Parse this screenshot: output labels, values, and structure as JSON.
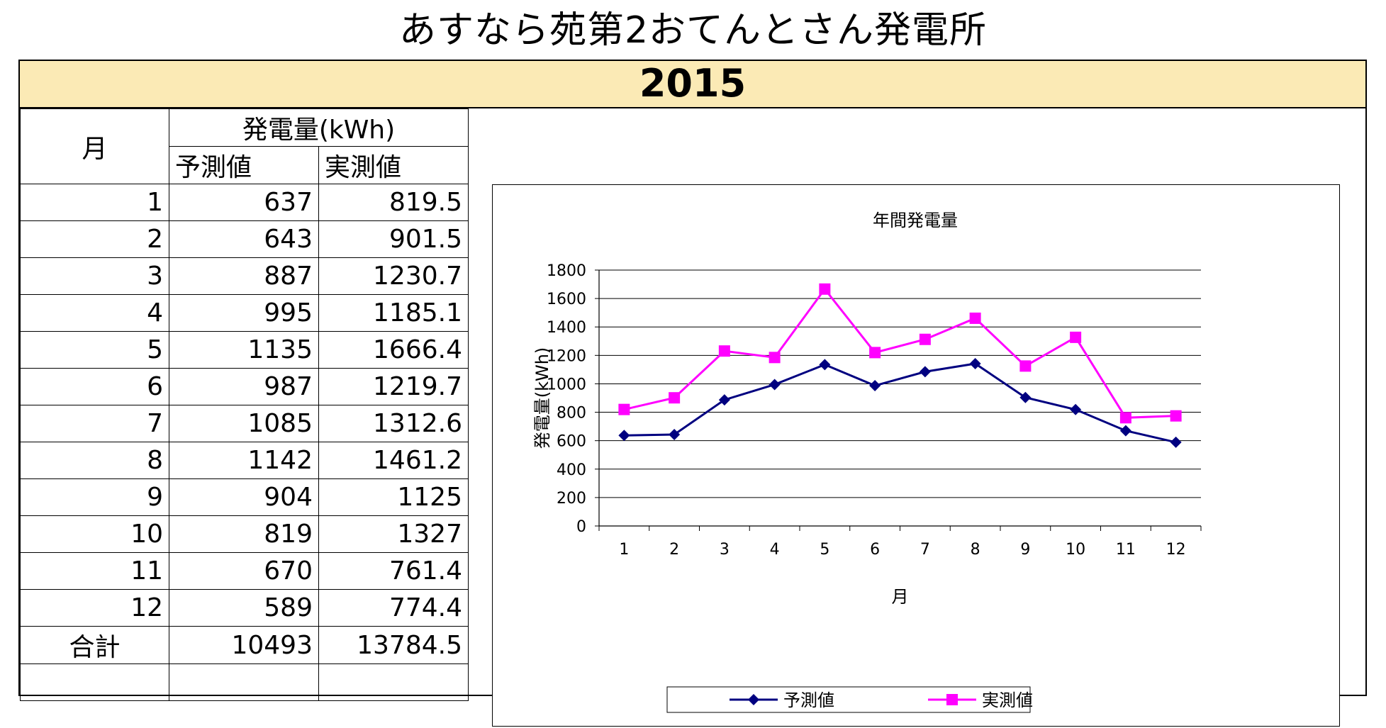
{
  "page": {
    "title": "あすなら苑第2おてんとさん発電所",
    "year": "2015"
  },
  "table": {
    "month_header": "月",
    "group_header": "発電量(kWh)",
    "col_forecast": "予測値",
    "col_actual": "実測値",
    "rows": [
      {
        "month": "1",
        "forecast": "637",
        "actual": "819.5"
      },
      {
        "month": "2",
        "forecast": "643",
        "actual": "901.5"
      },
      {
        "month": "3",
        "forecast": "887",
        "actual": "1230.7"
      },
      {
        "month": "4",
        "forecast": "995",
        "actual": "1185.1"
      },
      {
        "month": "5",
        "forecast": "1135",
        "actual": "1666.4"
      },
      {
        "month": "6",
        "forecast": "987",
        "actual": "1219.7"
      },
      {
        "month": "7",
        "forecast": "1085",
        "actual": "1312.6"
      },
      {
        "month": "8",
        "forecast": "1142",
        "actual": "1461.2"
      },
      {
        "month": "9",
        "forecast": "904",
        "actual": "1125"
      },
      {
        "month": "10",
        "forecast": "819",
        "actual": "1327"
      },
      {
        "month": "11",
        "forecast": "670",
        "actual": "761.4"
      },
      {
        "month": "12",
        "forecast": "589",
        "actual": "774.4"
      }
    ],
    "total_label": "合計",
    "total_forecast": "10493",
    "total_actual": "13784.5"
  },
  "chart_data": {
    "type": "line",
    "title": "年間発電量",
    "xlabel": "月",
    "ylabel": "発電量(kWh)",
    "categories": [
      "1",
      "2",
      "3",
      "4",
      "5",
      "6",
      "7",
      "8",
      "9",
      "10",
      "11",
      "12"
    ],
    "ylim": [
      0,
      1800
    ],
    "yticks": [
      0,
      200,
      400,
      600,
      800,
      1000,
      1200,
      1400,
      1600,
      1800
    ],
    "grid": true,
    "legend": "bottom",
    "series": [
      {
        "name": "予測値",
        "color": "#000080",
        "marker": "diamond",
        "values": [
          637,
          643,
          887,
          995,
          1135,
          987,
          1085,
          1142,
          904,
          819,
          670,
          589
        ]
      },
      {
        "name": "実測値",
        "color": "#ff00ff",
        "marker": "square",
        "values": [
          819.5,
          901.5,
          1230.7,
          1185.1,
          1666.4,
          1219.7,
          1312.6,
          1461.2,
          1125,
          1327,
          761.4,
          774.4
        ]
      }
    ]
  }
}
